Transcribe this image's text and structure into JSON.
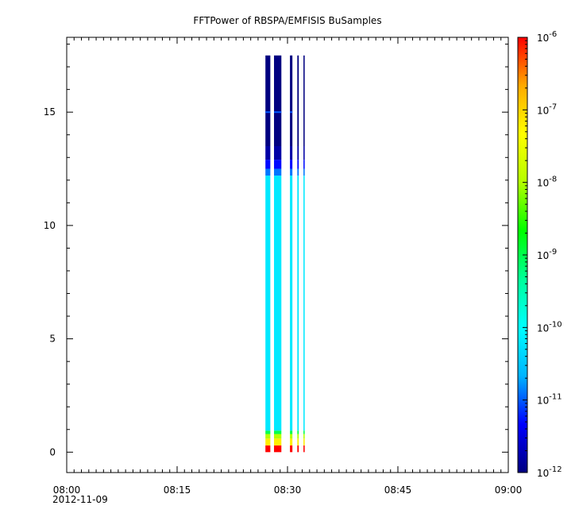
{
  "chart_data": {
    "type": "heatmap",
    "title": "FFTPower of RBSPA/EMFISIS  BuSamples",
    "xlabel": "",
    "ylabel": "",
    "x_axis": {
      "range": [
        "08:00",
        "09:00"
      ],
      "ticks": [
        "08:00",
        "08:15",
        "08:30",
        "08:45",
        "09:00"
      ],
      "date_label": "2012-11-09",
      "minor_tick_minutes": 1
    },
    "y_axis": {
      "range": [
        -0.9,
        18.3
      ],
      "ticks": [
        0,
        5,
        10,
        15
      ],
      "tick_labels": [
        "0",
        "5",
        "10",
        "15"
      ]
    },
    "colorbar": {
      "scale": "log",
      "range": [
        1e-12,
        1e-06
      ],
      "tick_exponents": [
        -12,
        -11,
        -10,
        -9,
        -8,
        -7,
        -6
      ],
      "tick_base": "10",
      "colormap": [
        "#000080",
        "#0000ff",
        "#00b4ff",
        "#00ffff",
        "#00ff99",
        "#00ff00",
        "#b4ff00",
        "#ffff00",
        "#ffaa00",
        "#ff0000"
      ]
    },
    "grid": false,
    "spectra": [
      {
        "start": "08:27:00",
        "end": "08:27:40"
      },
      {
        "start": "08:28:10",
        "end": "08:29:10"
      },
      {
        "start": "08:30:20",
        "end": "08:30:40"
      },
      {
        "start": "08:31:20",
        "end": "08:31:32"
      },
      {
        "start": "08:32:10",
        "end": "08:32:20"
      }
    ],
    "freq_range": [
      0,
      17.5
    ],
    "power_profile": [
      {
        "from": 0.0,
        "to": 0.3,
        "log10_power": -6.0
      },
      {
        "from": 0.3,
        "to": 0.6,
        "log10_power": -7.2
      },
      {
        "from": 0.6,
        "to": 0.8,
        "log10_power": -8.0
      },
      {
        "from": 0.8,
        "to": 0.95,
        "log10_power": -9.0
      },
      {
        "from": 0.95,
        "to": 12.2,
        "log10_power": -10.2
      },
      {
        "from": 12.2,
        "to": 12.5,
        "log10_power": -10.9
      },
      {
        "from": 12.5,
        "to": 12.9,
        "log10_power": -11.3
      },
      {
        "from": 12.9,
        "to": 13.5,
        "log10_power": -11.8
      },
      {
        "from": 13.5,
        "to": 17.5,
        "log10_power": -12.0
      }
    ],
    "line_feature": {
      "freq": 15.0,
      "log10_power": -11.0
    }
  }
}
